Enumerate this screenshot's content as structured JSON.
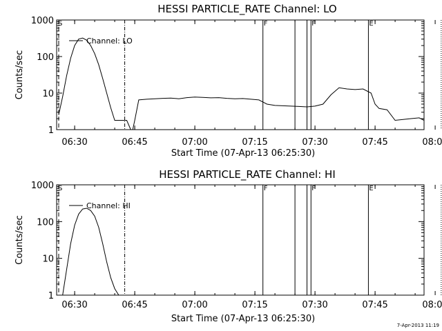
{
  "stamp": "7-Apr-2013 11:19",
  "chart_data": [
    {
      "type": "line",
      "title": "HESSI PARTICLE_RATE Channel: LO",
      "xlabel": "Start Time (07-Apr-13 06:25:30)",
      "ylabel": "Counts/sec",
      "yscale": "log",
      "ylim": [
        1,
        1000
      ],
      "x_ticks": [
        "06:30",
        "06:45",
        "07:00",
        "07:15",
        "07:30",
        "07:45",
        "08:00"
      ],
      "y_ticks": [
        "1",
        "10",
        "100",
        "1000"
      ],
      "legend": {
        "label": "Channel: LO",
        "position": "top-left"
      },
      "flags": [
        "S",
        "F",
        "F",
        "E"
      ],
      "series": [
        {
          "x": [
            "06:26:00",
            "06:27:00",
            "06:28:00",
            "06:29:00",
            "06:30:00",
            "06:31:00",
            "06:32:00",
            "06:33:00",
            "06:34:00",
            "06:35:00",
            "06:36:00",
            "06:37:00",
            "06:38:00",
            "06:39:00",
            "06:40:00",
            "06:41:00",
            "06:42:00",
            "06:43:00",
            "06:44:00",
            "06:44:30",
            "06:45:00",
            "06:46:00",
            "06:48:00",
            "06:50:00",
            "06:52:00",
            "06:54:00",
            "06:56:00",
            "06:58:00",
            "07:00:00",
            "07:02:00",
            "07:04:00",
            "07:06:00",
            "07:08:00",
            "07:10:00",
            "07:12:00",
            "07:14:00",
            "07:16:00",
            "07:18:00",
            "07:20:00",
            "07:22:00",
            "07:24:00",
            "07:26:00",
            "07:28:00",
            "07:30:00",
            "07:32:00",
            "07:34:00",
            "07:36:00",
            "07:38:00",
            "07:40:00",
            "07:42:00",
            "07:44:00",
            "07:45:00",
            "07:46:00",
            "07:48:00",
            "07:50:00",
            "07:52:00",
            "07:54:00",
            "07:56:00",
            "07:58:00",
            "08:00:00"
          ],
          "y": [
            2.5,
            8,
            30,
            90,
            200,
            300,
            320,
            280,
            200,
            120,
            60,
            25,
            10,
            4,
            1.8,
            1.8,
            1.8,
            1.8,
            1,
            1,
            1.8,
            6.5,
            6.8,
            7,
            7.2,
            7.3,
            7.0,
            7.5,
            7.8,
            7.6,
            7.4,
            7.5,
            7.2,
            7.0,
            7.1,
            6.8,
            6.5,
            5.0,
            4.6,
            4.5,
            4.4,
            4.3,
            4.2,
            4.4,
            5.0,
            9.0,
            14.0,
            13.0,
            12.5,
            13.0,
            10.0,
            5.0,
            3.8,
            3.5,
            1.8,
            1.9,
            2.0,
            2.1,
            1.8,
            1.8
          ]
        }
      ]
    },
    {
      "type": "line",
      "title": "HESSI PARTICLE_RATE Channel: HI",
      "xlabel": "Start Time (07-Apr-13 06:25:30)",
      "ylabel": "Counts/sec",
      "yscale": "log",
      "ylim": [
        1,
        1000
      ],
      "x_ticks": [
        "06:30",
        "06:45",
        "07:00",
        "07:15",
        "07:30",
        "07:45",
        "08:00"
      ],
      "y_ticks": [
        "1",
        "10",
        "100",
        "1000"
      ],
      "legend": {
        "label": "Channel: HI",
        "position": "top-left"
      },
      "flags": [
        "S",
        "F",
        "F",
        "E"
      ],
      "series": [
        {
          "x": [
            "06:27:00",
            "06:28:00",
            "06:29:00",
            "06:30:00",
            "06:31:00",
            "06:32:00",
            "06:33:00",
            "06:34:00",
            "06:35:00",
            "06:36:00",
            "06:37:00",
            "06:38:00",
            "06:39:00",
            "06:40:00",
            "06:41:00"
          ],
          "y": [
            1.0,
            5,
            25,
            80,
            160,
            220,
            230,
            200,
            140,
            70,
            25,
            8,
            3,
            1.5,
            1.0
          ]
        }
      ]
    }
  ]
}
